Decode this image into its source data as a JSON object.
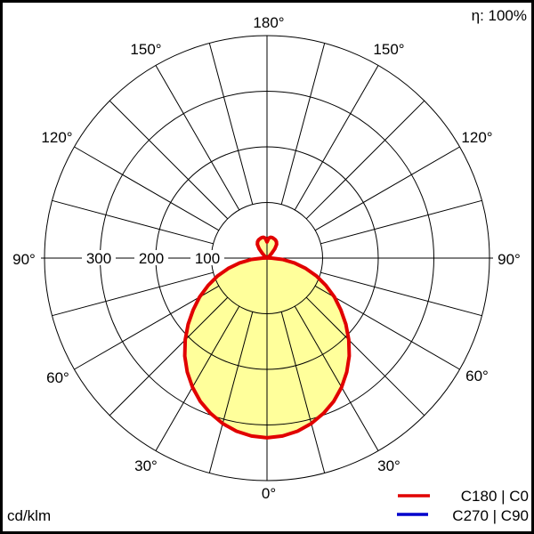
{
  "header": {
    "efficiency": "η: 100%"
  },
  "footer": {
    "unit": "cd/klm"
  },
  "legend": [
    {
      "label": "C180 | C0",
      "color": "#e10000"
    },
    {
      "label": "C270 | C90",
      "color": "#0000cc"
    }
  ],
  "angles": {
    "a180": "180°",
    "a150l": "150°",
    "a150r": "150°",
    "a120l": "120°",
    "a120r": "120°",
    "a90l": "90°",
    "a90r": "90°",
    "a60l": "60°",
    "a60r": "60°",
    "a30l": "30°",
    "a30r": "30°",
    "a0": "0°"
  },
  "radial": {
    "r300": "300",
    "r200": "200",
    "r100": "100"
  },
  "chart_data": {
    "type": "line",
    "subtype": "polar-photometric-intensity-curve",
    "title": "",
    "units": "cd/klm",
    "efficiency_percent": 100,
    "r_axis_ticks": [
      100,
      200,
      300,
      400
    ],
    "r_axis_labeled_ticks": [
      300,
      200,
      100
    ],
    "angle_grid_step_deg": 15,
    "angle_labels_deg": [
      0,
      30,
      60,
      90,
      120,
      150,
      180
    ],
    "fill_color": "#ffff9b",
    "gamma_deg": [
      0,
      5,
      10,
      15,
      20,
      25,
      30,
      35,
      40,
      45,
      50,
      55,
      60,
      65,
      70,
      75,
      80,
      85,
      90,
      95,
      100,
      105,
      110,
      115,
      120,
      125,
      130,
      135,
      140,
      145,
      150,
      155,
      160,
      165,
      170,
      175,
      180
    ],
    "series": [
      {
        "name": "C180 | C0",
        "color": "#e10000",
        "stroke_width": 4,
        "intensity_cd_per_klm": [
          323,
          321,
          316,
          308,
          297,
          284,
          268,
          250,
          230,
          208,
          185,
          162,
          140,
          117,
          95,
          72,
          50,
          28,
          8,
          2,
          1,
          1,
          1,
          1,
          2,
          3,
          5,
          11,
          22,
          30,
          34,
          36,
          37,
          38,
          38,
          36,
          29
        ]
      },
      {
        "name": "C270 | C90",
        "color": "#0000cc",
        "stroke_width": 3,
        "intensity_cd_per_klm": [
          323,
          321,
          316,
          308,
          297,
          284,
          268,
          250,
          230,
          208,
          185,
          162,
          140,
          117,
          95,
          72,
          50,
          28,
          8,
          2,
          1,
          1,
          1,
          1,
          2,
          3,
          5,
          11,
          22,
          30,
          34,
          36,
          37,
          38,
          38,
          36,
          29
        ]
      }
    ]
  }
}
